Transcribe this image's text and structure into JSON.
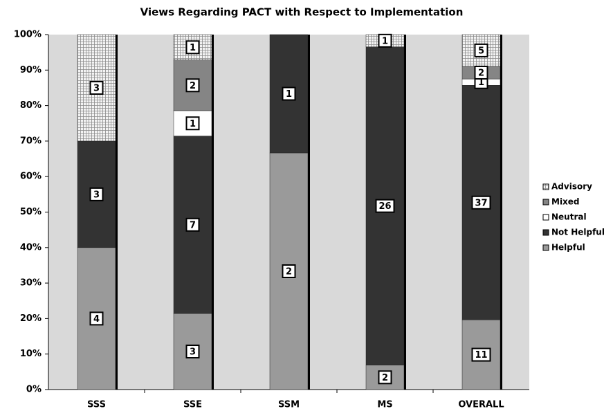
{
  "chart_data": {
    "type": "bar",
    "stacking": "percent",
    "title": "Views Regarding PACT with Respect to Implementation",
    "categories": [
      "SSS",
      "SSE",
      "SSM",
      "MS",
      "OVERALL"
    ],
    "series": [
      {
        "name": "Helpful",
        "color": "#9a9a9a",
        "values": [
          4,
          3,
          2,
          2,
          11
        ]
      },
      {
        "name": "Not Helpful",
        "color": "#333333",
        "values": [
          3,
          7,
          1,
          26,
          37
        ]
      },
      {
        "name": "Neutral",
        "color": "#ffffff",
        "values": [
          0,
          1,
          0,
          0,
          1
        ]
      },
      {
        "name": "Mixed",
        "color": "#858585",
        "values": [
          0,
          2,
          0,
          0,
          2
        ]
      },
      {
        "name": "Advisory",
        "color": "#eeeeee",
        "pattern": "grid",
        "values": [
          3,
          1,
          0,
          1,
          5
        ]
      }
    ],
    "ylim": [
      0,
      100
    ],
    "yticks": [
      {
        "value": 0,
        "label": "0%"
      },
      {
        "value": 10,
        "label": "10%"
      },
      {
        "value": 20,
        "label": "20%"
      },
      {
        "value": 30,
        "label": "30%"
      },
      {
        "value": 40,
        "label": "40%"
      },
      {
        "value": 50,
        "label": "50%"
      },
      {
        "value": 60,
        "label": "60%"
      },
      {
        "value": 70,
        "label": "70%"
      },
      {
        "value": 80,
        "label": "80%"
      },
      {
        "value": 90,
        "label": "90%"
      },
      {
        "value": 100,
        "label": "100%"
      }
    ],
    "grid": false,
    "legend": "right"
  }
}
